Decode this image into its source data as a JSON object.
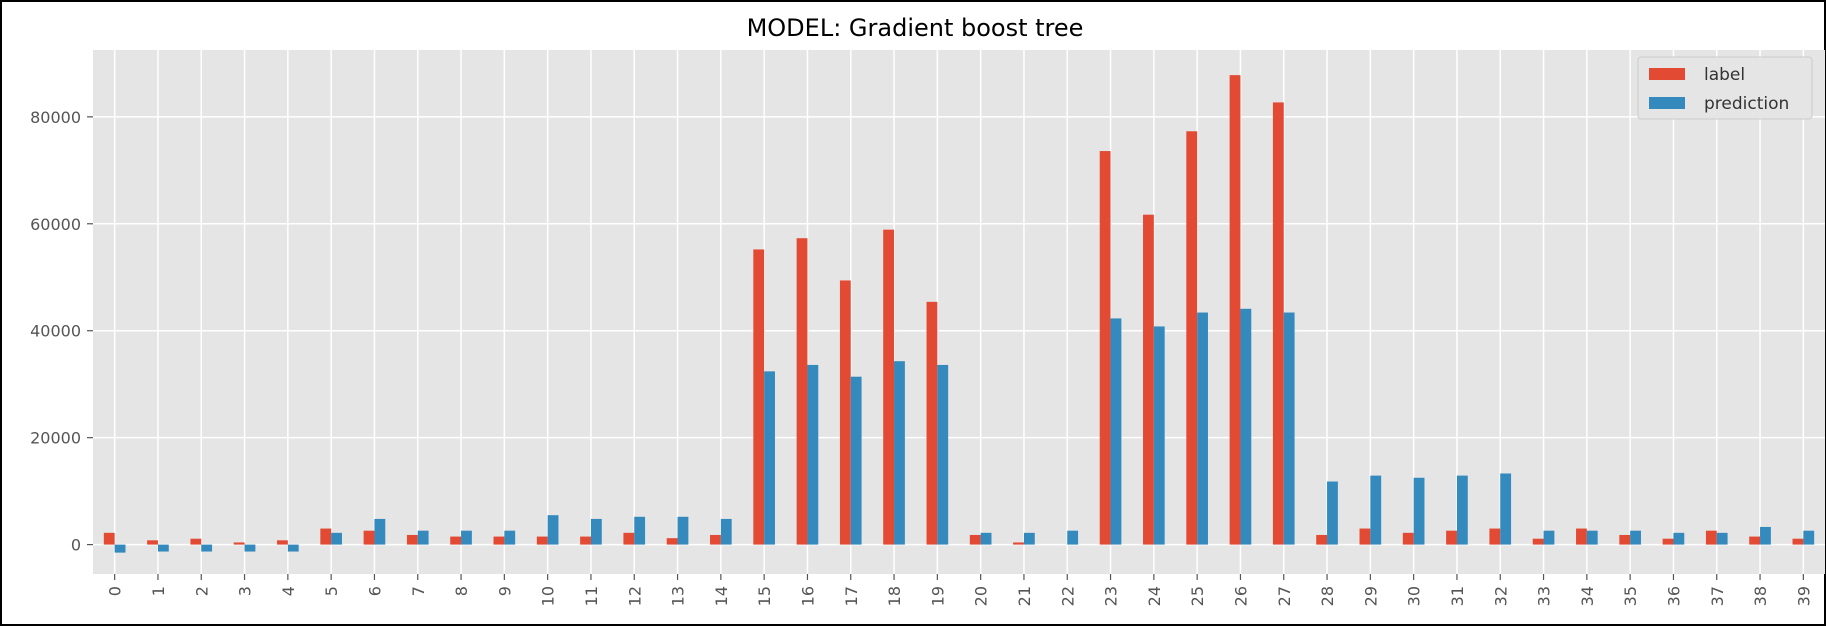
{
  "chart_data": {
    "type": "bar",
    "title": "MODEL: Gradient boost tree",
    "xlabel": "",
    "ylabel": "",
    "categories": [
      "0",
      "1",
      "2",
      "3",
      "4",
      "5",
      "6",
      "7",
      "8",
      "9",
      "10",
      "11",
      "12",
      "13",
      "14",
      "15",
      "16",
      "17",
      "18",
      "19",
      "20",
      "21",
      "22",
      "23",
      "24",
      "25",
      "26",
      "27",
      "28",
      "29",
      "30",
      "31",
      "32",
      "33",
      "34",
      "35",
      "36",
      "37",
      "38",
      "39"
    ],
    "series": [
      {
        "name": "label",
        "color": "#e24a33",
        "values": [
          2200,
          800,
          1100,
          400,
          800,
          3000,
          2600,
          1800,
          1500,
          1500,
          1500,
          1500,
          2200,
          1200,
          1800,
          55200,
          57300,
          49400,
          58900,
          45400,
          1800,
          400,
          0,
          73600,
          61700,
          77300,
          87800,
          82700,
          1800,
          3000,
          2200,
          2600,
          3000,
          1100,
          3000,
          1800,
          1100,
          2600,
          1500,
          1100
        ]
      },
      {
        "name": "prediction",
        "color": "#348abd",
        "values": [
          -1500,
          -1300,
          -1300,
          -1300,
          -1300,
          2200,
          4800,
          2600,
          2600,
          2600,
          5500,
          4800,
          5200,
          5200,
          4800,
          32400,
          33600,
          31400,
          34300,
          33600,
          2200,
          2200,
          2600,
          42300,
          40800,
          43400,
          44100,
          43400,
          11800,
          12900,
          12500,
          12900,
          13300,
          2600,
          2600,
          2600,
          2200,
          2200,
          3300,
          2600
        ]
      }
    ],
    "y_ticks": [
      "0",
      "20000",
      "40000",
      "60000",
      "80000"
    ],
    "ylim": [
      -5500,
      92500
    ],
    "grid": true,
    "legend_position": "top-right",
    "style": "ggplot"
  }
}
